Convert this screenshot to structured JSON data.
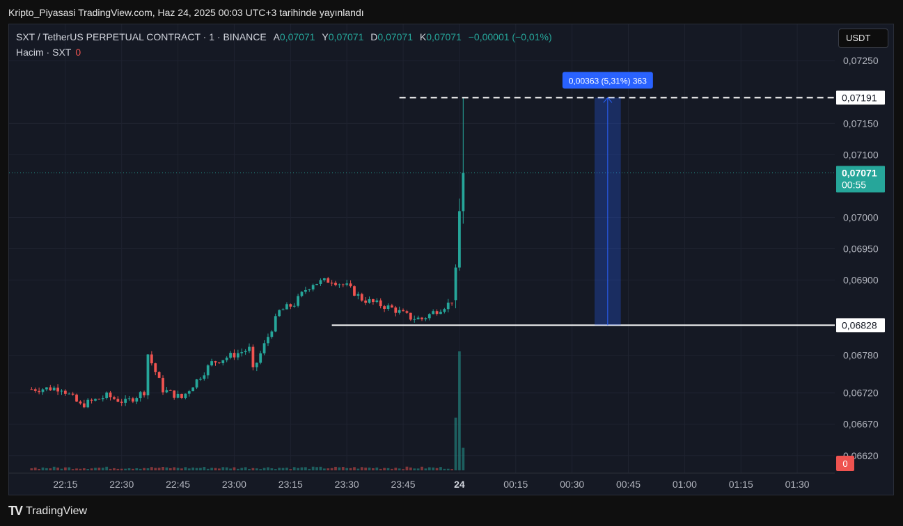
{
  "caption": "Kripto_Piyasasi TradingView.com, Haz 24, 2025 00:03 UTC+3 tarihinde yayınlandı",
  "legend": {
    "symbol": "SXT / TetherUS PERPETUAL CONTRACT · 1 · BINANCE",
    "open_label": "A",
    "open": "0,07071",
    "high_label": "Y",
    "high": "0,07071",
    "low_label": "D",
    "low": "0,07071",
    "close_label": "K",
    "close": "0,07071",
    "change": "−0,00001 (−0,01%)"
  },
  "volume_legend": {
    "label": "Hacim · SXT",
    "value": "0"
  },
  "currency_button": "USDT",
  "footer_logo": "TradingView",
  "colors": {
    "up": "#26a69a",
    "down": "#ef5350",
    "background": "#151924",
    "grid": "#1f2330",
    "measure": "#2962ff"
  },
  "chart_data": {
    "type": "candlestick",
    "interval": "1m",
    "y_range": [
      0.06592,
      0.07308
    ],
    "x_range": [
      "22:06",
      "01:46"
    ],
    "y_ticks": [
      "0,07250",
      "0,07150",
      "0,07100",
      "0,07000",
      "0,06950",
      "0,06900",
      "0,06780",
      "0,06720",
      "0,06670",
      "0,06620"
    ],
    "y_tick_values": [
      0.0725,
      0.0715,
      0.071,
      0.07,
      0.0695,
      0.069,
      0.0678,
      0.0672,
      0.0667,
      0.0662
    ],
    "x_ticks": [
      "22:15",
      "22:30",
      "22:45",
      "23:00",
      "23:15",
      "23:30",
      "23:45",
      "24",
      "00:15",
      "00:30",
      "00:45",
      "01:00",
      "01:15",
      "01:30"
    ],
    "x_tick_minutes": [
      9,
      24,
      39,
      54,
      69,
      84,
      99,
      114,
      129,
      144,
      159,
      174,
      189,
      204
    ],
    "anchors": [
      [
        0,
        0.06726
      ],
      [
        8,
        0.06728
      ],
      [
        13,
        0.067
      ],
      [
        20,
        0.06715
      ],
      [
        25,
        0.06705
      ],
      [
        30,
        0.06722
      ],
      [
        31,
        0.06782
      ],
      [
        35,
        0.06725
      ],
      [
        40,
        0.06712
      ],
      [
        48,
        0.06768
      ],
      [
        58,
        0.0679
      ],
      [
        59,
        0.06755
      ],
      [
        63,
        0.0681
      ],
      [
        66,
        0.0685
      ],
      [
        70,
        0.06862
      ],
      [
        73,
        0.06885
      ],
      [
        75,
        0.06895
      ],
      [
        80,
        0.069
      ],
      [
        84,
        0.0689
      ],
      [
        88,
        0.0687
      ],
      [
        92,
        0.06862
      ],
      [
        96,
        0.06855
      ],
      [
        101,
        0.0684
      ],
      [
        104,
        0.06838
      ],
      [
        108,
        0.06852
      ],
      [
        111,
        0.06862
      ],
      [
        112,
        0.06868
      ],
      [
        113,
        0.0692
      ],
      [
        114,
        0.0701
      ],
      [
        115,
        0.0707
      ]
    ],
    "last_candle": {
      "minute": 115,
      "open": 0.0701,
      "high": 0.07191,
      "low": 0.0699,
      "close": 0.07071
    },
    "volume": {
      "spike_minutes": [
        113,
        114,
        115
      ],
      "spike_ratios": [
        0.42,
        0.95,
        0.18
      ],
      "base_ratio": 0.02
    },
    "price_labels": {
      "high": "0,07191",
      "high_value": 0.07191,
      "low": "0,06828",
      "low_value": 0.06828,
      "current": "0,07071",
      "current_value": 0.07071,
      "countdown": "00:55",
      "volume_zero": "0"
    },
    "measure": {
      "label": "0,00363 (5,31%) 363",
      "from": 0.06828,
      "to": 0.07191,
      "from_minute": 150,
      "to_minute": 157
    },
    "high_line_start_minute": 98,
    "low_line_start_minute": 80
  }
}
